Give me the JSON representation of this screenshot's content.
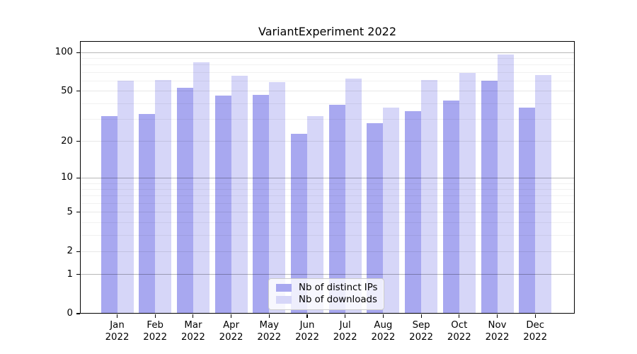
{
  "chart_data": {
    "type": "bar",
    "title": "VariantExperiment 2022",
    "categories": [
      "Jan",
      "Feb",
      "Mar",
      "Apr",
      "May",
      "Jun",
      "Jul",
      "Aug",
      "Sep",
      "Oct",
      "Nov",
      "Dec"
    ],
    "category_year": "2022",
    "series": [
      {
        "name": "Nb of distinct IPs",
        "color": "#a8a8f0",
        "values": [
          32,
          33,
          53,
          46,
          47,
          23,
          39,
          28,
          35,
          42,
          60,
          37
        ]
      },
      {
        "name": "Nb of downloads",
        "color": "#d6d6f8",
        "values": [
          60,
          61,
          84,
          66,
          59,
          32,
          63,
          37,
          61,
          69,
          96,
          67
        ]
      }
    ],
    "xlabel": "",
    "ylabel": "",
    "y_axis": {
      "scale": "symlog",
      "tick_labels": [
        0,
        1,
        2,
        5,
        10,
        20,
        50,
        100
      ],
      "decade_gridlines": [
        1,
        10,
        100
      ],
      "labeled_gridlines": [
        2,
        5,
        20,
        50
      ],
      "minor_gridlines": [
        3,
        4,
        6,
        7,
        8,
        9,
        30,
        40,
        60,
        70,
        80,
        90
      ],
      "ylim": [
        0,
        121
      ]
    },
    "legend": {
      "position": "bottom-center",
      "entries": [
        "Nb of distinct IPs",
        "Nb of downloads"
      ]
    },
    "grid": "both",
    "background": "#ffffff",
    "frame_color": "#000000"
  }
}
